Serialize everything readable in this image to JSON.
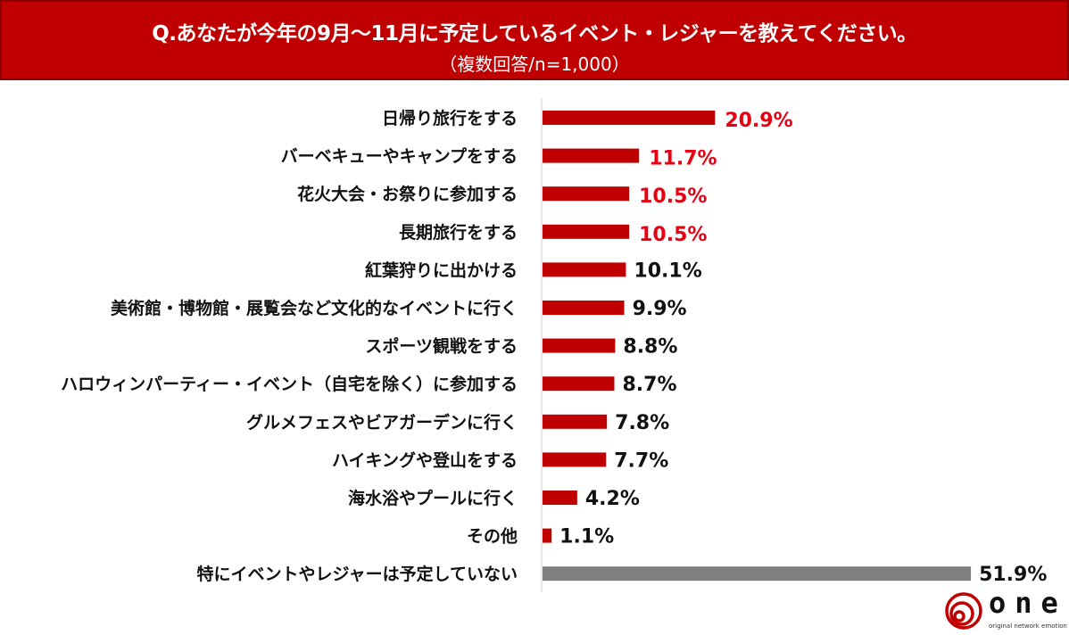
{
  "header": {
    "title": "Q.あなたが今年の9月～11月に予定しているイベント・レジャーを教えてください。",
    "subtitle": "（複数回答/n=1,000）"
  },
  "chart_data": {
    "type": "bar",
    "orientation": "horizontal",
    "title": "Q.あなたが今年の9月～11月に予定しているイベント・レジャーを教えてください。",
    "subtitle": "（複数回答/n=1,000）",
    "xlabel": "",
    "ylabel": "",
    "xlim": [
      0,
      55
    ],
    "grid": false,
    "categories": [
      "日帰り旅行をする",
      "バーベキューやキャンプをする",
      "花火大会・お祭りに参加する",
      "長期旅行をする",
      "紅葉狩りに出かける",
      "美術館・博物館・展覧会など文化的なイベントに行く",
      "スポーツ観戦をする",
      "ハロウィンパーティー・イベント（自宅を除く）に参加する",
      "グルメフェスやビアガーデンに行く",
      "ハイキングや登山をする",
      "海水浴やプールに行く",
      "その他",
      "特にイベントやレジャーは予定していない"
    ],
    "values": [
      20.9,
      11.7,
      10.5,
      10.5,
      10.1,
      9.9,
      8.8,
      8.7,
      7.8,
      7.7,
      4.2,
      1.1,
      51.9
    ],
    "value_labels": [
      "20.9%",
      "11.7%",
      "10.5%",
      "10.5%",
      "10.1%",
      "9.9%",
      "8.8%",
      "8.7%",
      "7.8%",
      "7.7%",
      "4.2%",
      "1.1%",
      "51.9%"
    ],
    "highlight_top": 4
  },
  "colors": {
    "header": "#c00000",
    "bar": "#c00000",
    "bar_none": "#808080",
    "highlight_text": "#e60012",
    "text": "#111111"
  },
  "logo": {
    "word": "one",
    "tagline": "original network emotion"
  }
}
